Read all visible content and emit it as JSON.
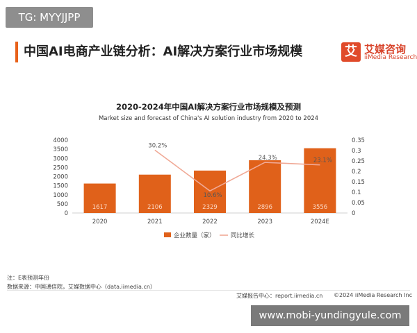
{
  "watermark_top": "TG: MYYJJPP",
  "header": {
    "title": "中国AI电商产业链分析：AI解决方案行业市场规模",
    "logo_mark": "艾",
    "logo_cn": "艾媒咨询",
    "logo_en": "iiMedia Research"
  },
  "chart_data": {
    "type": "bar+line",
    "title": "2020-2024年中国AI解决方案行业市场规模及预测",
    "subtitle": "Market size and forecast of China's AI solution industry from 2020 to 2024",
    "categories": [
      "2020",
      "2021",
      "2022",
      "2023",
      "2024E"
    ],
    "series": [
      {
        "name": "企业数量（家）",
        "type": "bar",
        "axis": "left",
        "values": [
          1617,
          2106,
          2329,
          2896,
          3556
        ],
        "labels": [
          "1617",
          "2106",
          "2329",
          "2896",
          "3556"
        ],
        "color": "#e0611a"
      },
      {
        "name": "同比增长",
        "type": "line",
        "axis": "right",
        "values": [
          null,
          0.302,
          0.106,
          0.243,
          0.231
        ],
        "labels": [
          "",
          "30.2%",
          "10.6%",
          "24.3%",
          "23.1%"
        ],
        "color": "#f0a996"
      }
    ],
    "y_left": {
      "min": 0,
      "max": 4000,
      "ticks": [
        "0",
        "500",
        "1000",
        "1500",
        "2000",
        "2500",
        "3000",
        "3500",
        "4000"
      ]
    },
    "y_right": {
      "min": 0,
      "max": 0.35,
      "ticks": [
        "0",
        "0.05",
        "0.1",
        "0.15",
        "0.2",
        "0.25",
        "0.3",
        "0.35"
      ]
    },
    "grid": false,
    "legend_position": "bottom"
  },
  "notes": {
    "line1": "注：E表预测年份",
    "line2": "数据来源：中国通信院，艾媒数据中心（data.iimedia.cn）"
  },
  "footer": {
    "left": "艾媒报告中心：report.iimedia.cn",
    "right": "©2024  iiMedia Research  Inc"
  },
  "watermark_bottom": "www.mobi-yundingyule.com"
}
